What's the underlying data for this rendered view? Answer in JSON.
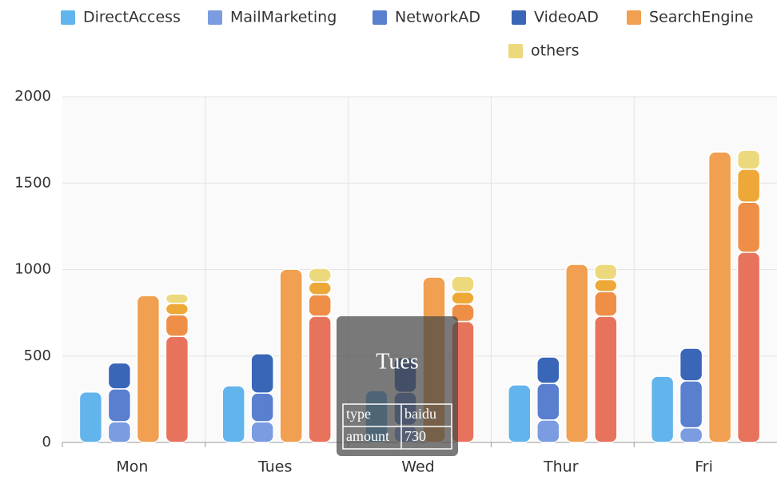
{
  "chart_data": {
    "type": "bar",
    "categories": [
      "Mon",
      "Tues",
      "Wed",
      "Thur",
      "Fri"
    ],
    "series": [
      {
        "name": "DirectAccess",
        "color": "#62b4ec",
        "stack": 0,
        "values": [
          292,
          328,
          300,
          333,
          383
        ]
      },
      {
        "name": "MailMarketing",
        "color": "#7b9ce1",
        "stack": 1,
        "values": [
          120,
          120,
          100,
          130,
          85
        ]
      },
      {
        "name": "NetworkAD",
        "color": "#5b7fcf",
        "stack": 1,
        "values": [
          190,
          166,
          190,
          212,
          271
        ]
      },
      {
        "name": "VideoAD",
        "color": "#3a66b8",
        "stack": 1,
        "values": [
          150,
          227,
          200,
          152,
          189
        ]
      },
      {
        "name": "SearchEngine",
        "color": "#f0a050",
        "stack": 2,
        "values": [
          850,
          1002,
          956,
          1030,
          1680
        ]
      },
      {
        "name": "baidu",
        "color": "#e8735c",
        "stack": 3,
        "values": [
          614,
          730,
          700,
          730,
          1100
        ]
      },
      {
        "color": "#ef8f47",
        "stack": 3,
        "values": [
          125,
          125,
          100,
          143,
          290
        ]
      },
      {
        "color": "#eda838",
        "stack": 3,
        "values": [
          65,
          73,
          70,
          69,
          190
        ]
      },
      {
        "name": "others",
        "color": "#ecd97d",
        "stack": 3,
        "values": [
          55,
          79,
          90,
          88,
          110
        ]
      }
    ],
    "ylim": [
      0,
      2000
    ],
    "yticks": [
      0,
      500,
      1000,
      1500,
      2000
    ],
    "grid": true,
    "tooltip_headers": [
      "type",
      "amount"
    ]
  }
}
